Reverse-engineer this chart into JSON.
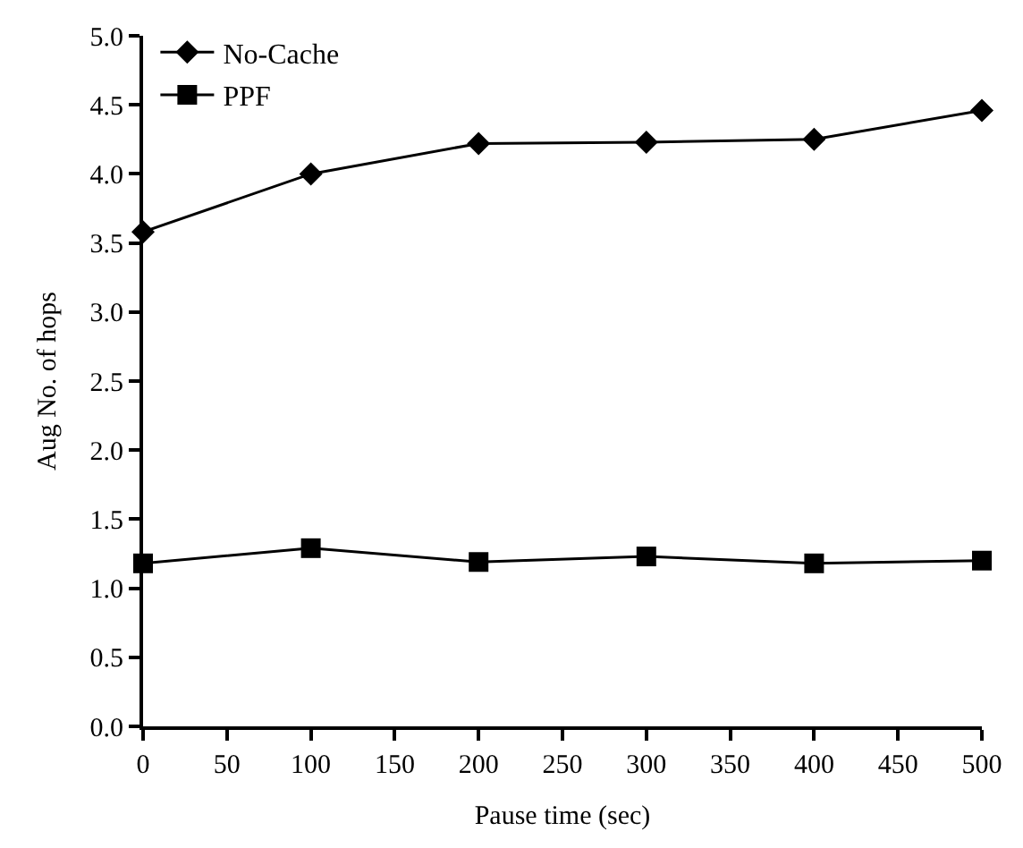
{
  "chart_data": {
    "type": "line",
    "xlabel": "Pause time (sec)",
    "ylabel": "Aug No. of hops",
    "x": [
      0,
      100,
      200,
      300,
      400,
      500
    ],
    "series": [
      {
        "name": "No-Cache",
        "color": "#000000",
        "marker": "diamond",
        "values": [
          3.58,
          4.0,
          4.22,
          4.23,
          4.25,
          4.46
        ]
      },
      {
        "name": "PPF",
        "color": "#000000",
        "marker": "square",
        "values": [
          1.18,
          1.29,
          1.19,
          1.23,
          1.18,
          1.2
        ]
      }
    ],
    "xlim": [
      0,
      500
    ],
    "xticks": [
      0,
      50,
      100,
      150,
      200,
      250,
      300,
      350,
      400,
      450,
      500
    ],
    "ylim": [
      0,
      5
    ],
    "yticks": [
      {
        "value": 0,
        "label": "0.0"
      },
      {
        "value": 0.5,
        "label": "0.5"
      },
      {
        "value": 1,
        "label": "1.0"
      },
      {
        "value": 1.5,
        "label": "1.5"
      },
      {
        "value": 2,
        "label": "2.0"
      },
      {
        "value": 2.5,
        "label": "2.5"
      },
      {
        "value": 3,
        "label": "3.0"
      },
      {
        "value": 3.5,
        "label": "3.5"
      },
      {
        "value": 4,
        "label": "4.0"
      },
      {
        "value": 4.5,
        "label": "4.5"
      },
      {
        "value": 5,
        "label": "5.0"
      }
    ],
    "legend": "top left",
    "line_style": "solid"
  }
}
